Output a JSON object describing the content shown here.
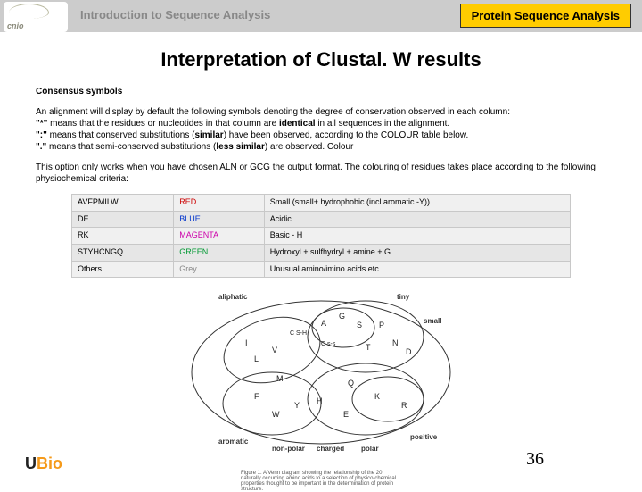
{
  "header": {
    "left": "Introduction to Sequence Analysis",
    "right": "Protein Sequence Analysis",
    "logo_text": "cnio"
  },
  "title": "Interpretation of Clustal. W results",
  "subhead": "Consensus symbols",
  "intro": "An alignment will display by default the following symbols denoting the degree of conservation observed in each column:",
  "lines": {
    "l1a": "\"*\"",
    "l1b": " means that the residues or nucleotides in that column are ",
    "l1c": "identical",
    "l1d": " in all sequences in the alignment.",
    "l2a": "\":\"",
    "l2b": " means that conserved substitutions (",
    "l2c": "similar",
    "l2d": ") have been observed, according to the COLOUR table below.",
    "l3a": "\".\"",
    "l3b": " means that semi-conserved substitutions (",
    "l3c": "less similar",
    "l3d": ") are observed. Colour"
  },
  "para2": "This option only works when you have chosen ALN or GCG the output format. The colouring of residues takes place according to the following physiochemical criteria:",
  "table": {
    "rows": [
      {
        "res": "AVFPMILW",
        "col": "RED",
        "col_class": "c-red",
        "desc": "Small (small+ hydrophobic (incl.aromatic -Y))"
      },
      {
        "res": "DE",
        "col": "BLUE",
        "col_class": "c-blue",
        "desc": "Acidic"
      },
      {
        "res": "RK",
        "col": "MAGENTA",
        "col_class": "c-mag",
        "desc": "Basic - H"
      },
      {
        "res": "STYHCNGQ",
        "col": "GREEN",
        "col_class": "c-green",
        "desc": "Hydroxyl + sulfhydryl + amine + G"
      },
      {
        "res": "Others",
        "col": "Grey",
        "col_class": "c-grey",
        "desc": "Unusual amino/imino acids etc"
      }
    ]
  },
  "venn": {
    "labels": {
      "aliphatic": "aliphatic",
      "tiny": "tiny",
      "small": "small",
      "aromatic": "aromatic",
      "nonpolar": "non-polar",
      "charged": "charged",
      "polar": "polar",
      "positive": "positive"
    },
    "aa": {
      "I": "I",
      "L": "L",
      "V": "V",
      "A": "A",
      "G": "G",
      "C": "C",
      "S": "S",
      "P": "P",
      "T": "T",
      "M": "M",
      "F": "F",
      "W": "W",
      "Y": "Y",
      "H": "H",
      "K": "K",
      "R": "R",
      "N": "N",
      "D": "D",
      "Q": "Q",
      "E": "E",
      "Csh": "C S-H",
      "Css": "C s-s"
    },
    "caption": "Figure 1. A Venn diagram showing the relationship of the 20 naturally occurring amino acids to a selection of physico-chemical properties thought to be important in the determination of protein structure."
  },
  "footer": {
    "logo_u": "U",
    "logo_b": "Bio",
    "page": "36"
  },
  "colors": {
    "header_bg": "#cccccc",
    "accent": "#ffcc00"
  }
}
